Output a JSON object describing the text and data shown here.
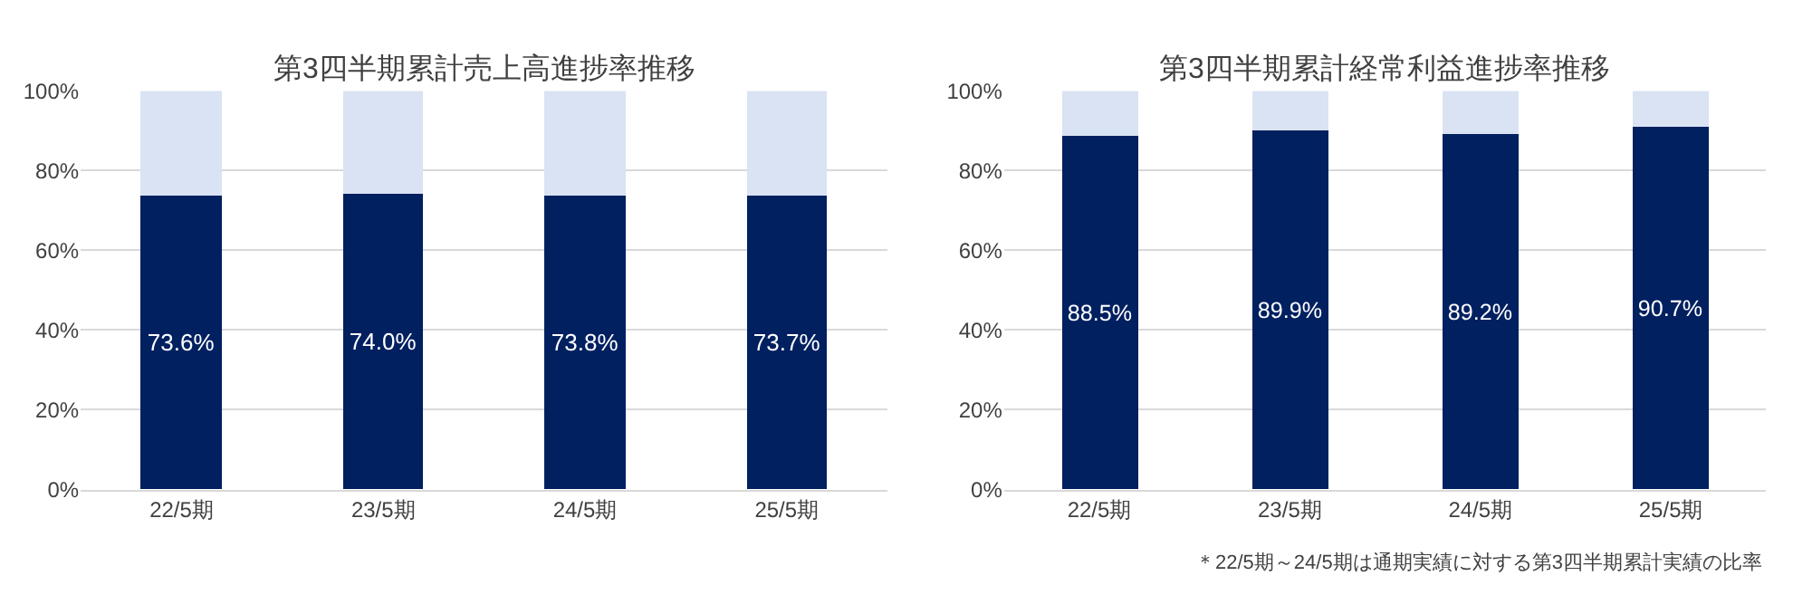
{
  "chart_data": [
    {
      "type": "bar",
      "title": "第3四半期累計売上高進捗率推移",
      "categories": [
        "22/5期",
        "23/5期",
        "24/5期",
        "25/5期"
      ],
      "stacked": true,
      "series": [
        {
          "color": "#002060",
          "values": [
            73.6,
            74.0,
            73.8,
            73.7
          ],
          "value_labels": [
            "73.6%",
            "74.0%",
            "73.8%",
            "73.7%"
          ]
        },
        {
          "color": "#dae3f3",
          "values": [
            26.4,
            26.0,
            26.2,
            26.3
          ]
        }
      ],
      "ylim": [
        0,
        100
      ],
      "yticks": [
        {
          "value": 0,
          "label": "0%"
        },
        {
          "value": 20,
          "label": "20%"
        },
        {
          "value": 40,
          "label": "40%"
        },
        {
          "value": 60,
          "label": "60%"
        },
        {
          "value": 80,
          "label": "80%"
        },
        {
          "value": 100,
          "label": "100%"
        }
      ],
      "grid": "y"
    },
    {
      "type": "bar",
      "title": "第3四半期累計経常利益進捗率推移",
      "categories": [
        "22/5期",
        "23/5期",
        "24/5期",
        "25/5期"
      ],
      "stacked": true,
      "series": [
        {
          "color": "#002060",
          "values": [
            88.5,
            89.9,
            89.2,
            90.7
          ],
          "value_labels": [
            "88.5%",
            "89.9%",
            "89.2%",
            "90.7%"
          ]
        },
        {
          "color": "#dae3f3",
          "values": [
            11.5,
            10.1,
            10.8,
            9.3
          ]
        }
      ],
      "ylim": [
        0,
        100
      ],
      "yticks": [
        {
          "value": 0,
          "label": "0%"
        },
        {
          "value": 20,
          "label": "20%"
        },
        {
          "value": 40,
          "label": "40%"
        },
        {
          "value": 60,
          "label": "60%"
        },
        {
          "value": 80,
          "label": "80%"
        },
        {
          "value": 100,
          "label": "100%"
        }
      ],
      "grid": "y",
      "annotations": [
        "＊22/5期～24/5期は通期実績に対する第3四半期累計実績の比率"
      ]
    }
  ]
}
